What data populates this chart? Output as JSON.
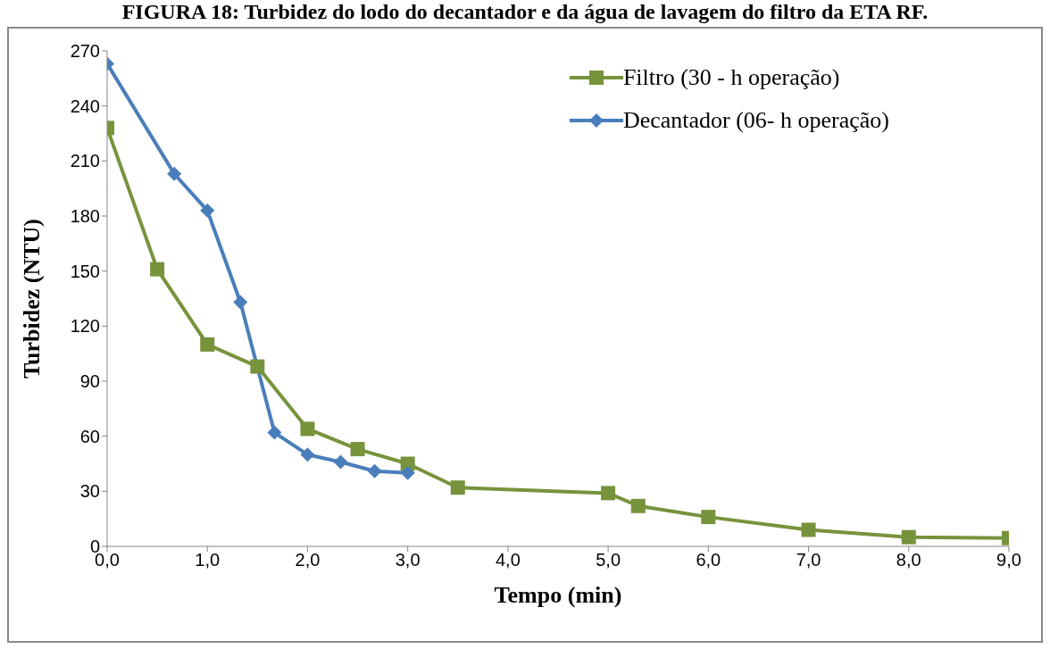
{
  "chart_data": {
    "type": "line",
    "title": "FIGURA 18: Turbidez do lodo do decantador e da água de lavagem do filtro da ETA RF.",
    "xlabel": "Tempo  (min)",
    "ylabel": "Turbidez (NTU)",
    "series": [
      {
        "name": "Filtro (30 - h operação)",
        "color": "#77933c",
        "marker": "square",
        "x": [
          0,
          0.5,
          1,
          1.5,
          2,
          2.5,
          3,
          3.5,
          5,
          5.3,
          6,
          7,
          8,
          9
        ],
        "values": [
          228,
          151,
          110,
          98,
          64,
          53,
          45,
          32,
          29,
          22,
          16,
          9,
          5,
          4.5
        ]
      },
      {
        "name": "Decantador (06- h operação)",
        "color": "#4a7ebb",
        "marker": "diamond",
        "x": [
          0,
          0.67,
          1,
          1.33,
          1.67,
          2,
          2.33,
          2.67,
          3
        ],
        "values": [
          263,
          203,
          183,
          133,
          62,
          50,
          46,
          41,
          40
        ]
      }
    ],
    "xlim": [
      0,
      9
    ],
    "xticks": [
      {
        "value": 0,
        "label": "0,0"
      },
      {
        "value": 1,
        "label": "1,0"
      },
      {
        "value": 2,
        "label": "2,0"
      },
      {
        "value": 3,
        "label": "3,0"
      },
      {
        "value": 4,
        "label": "4,0"
      },
      {
        "value": 5,
        "label": "5,0"
      },
      {
        "value": 6,
        "label": "6,0"
      },
      {
        "value": 7,
        "label": "7,0"
      },
      {
        "value": 8,
        "label": "8,0"
      },
      {
        "value": 9,
        "label": "9,0"
      }
    ],
    "ylim": [
      0,
      270
    ],
    "yticks": [
      0,
      30,
      60,
      90,
      120,
      150,
      180,
      210,
      240,
      270
    ],
    "grid": false,
    "legend": "top right",
    "line_style": "solid"
  }
}
